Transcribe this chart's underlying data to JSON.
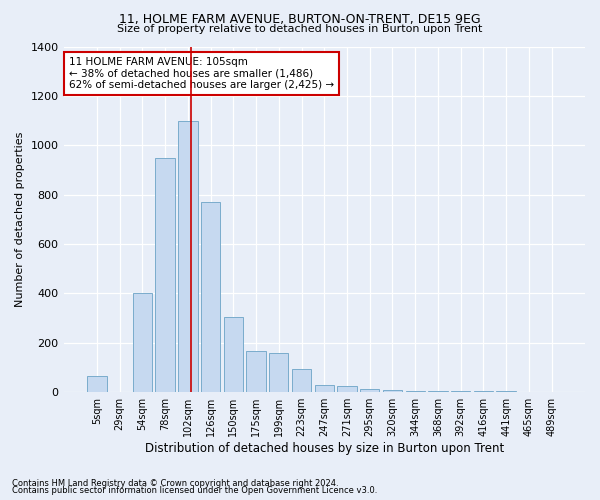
{
  "title1": "11, HOLME FARM AVENUE, BURTON-ON-TRENT, DE15 9EG",
  "title2": "Size of property relative to detached houses in Burton upon Trent",
  "xlabel": "Distribution of detached houses by size in Burton upon Trent",
  "ylabel": "Number of detached properties",
  "footnote1": "Contains HM Land Registry data © Crown copyright and database right 2024.",
  "footnote2": "Contains public sector information licensed under the Open Government Licence v3.0.",
  "categories": [
    "5sqm",
    "29sqm",
    "54sqm",
    "78sqm",
    "102sqm",
    "126sqm",
    "150sqm",
    "175sqm",
    "199sqm",
    "223sqm",
    "247sqm",
    "271sqm",
    "295sqm",
    "320sqm",
    "344sqm",
    "368sqm",
    "392sqm",
    "416sqm",
    "441sqm",
    "465sqm",
    "489sqm"
  ],
  "values": [
    65,
    0,
    400,
    950,
    1100,
    770,
    305,
    165,
    160,
    95,
    30,
    25,
    15,
    10,
    5,
    5,
    5,
    5,
    5,
    0,
    0
  ],
  "bar_color": "#c6d9f0",
  "bar_edge_color": "#7aaccc",
  "background_color": "#e8eef8",
  "grid_color": "#ffffff",
  "vline_color": "#cc0000",
  "vline_x_index": 4,
  "annotation_text": "11 HOLME FARM AVENUE: 105sqm\n← 38% of detached houses are smaller (1,486)\n62% of semi-detached houses are larger (2,425) →",
  "annotation_box_facecolor": "#ffffff",
  "annotation_box_edgecolor": "#cc0000",
  "ylim": [
    0,
    1400
  ],
  "yticks": [
    0,
    200,
    400,
    600,
    800,
    1000,
    1200,
    1400
  ]
}
